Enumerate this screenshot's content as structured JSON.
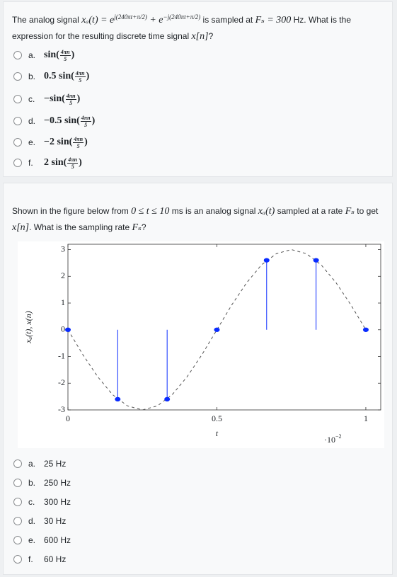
{
  "question1": {
    "segments": [
      "The analog signal ",
      "xₐ(t) = e",
      "j(240πt+π/2)",
      " + e",
      "−j(240πt+π/2)",
      " is sampled at ",
      "Fₛ = 300",
      " Hz. What is the expression for the resulting discrete time signal ",
      "x[n]",
      "?"
    ],
    "options": [
      {
        "letter": "a.",
        "prefix": "sin(",
        "num": "4πn",
        "den": "5",
        "suffix": ")"
      },
      {
        "letter": "b.",
        "prefix": "0.5 sin(",
        "num": "4πn",
        "den": "5",
        "suffix": ")"
      },
      {
        "letter": "c.",
        "prefix": "−sin(",
        "num": "4πn",
        "den": "5",
        "suffix": ")"
      },
      {
        "letter": "d.",
        "prefix": "−0.5 sin(",
        "num": "4πn",
        "den": "5",
        "suffix": ")"
      },
      {
        "letter": "e.",
        "prefix": "−2 sin(",
        "num": "4πn",
        "den": "5",
        "suffix": ")"
      },
      {
        "letter": "f.",
        "prefix": "2 sin(",
        "num": "4πn",
        "den": "5",
        "suffix": ")"
      }
    ]
  },
  "question2": {
    "segments": [
      "Shown in the figure below from ",
      "0 ≤ t ≤ 10",
      " ms is an analog signal ",
      "xₐ(t)",
      " sampled at a rate ",
      "Fₛ",
      " to get ",
      "x[n]",
      ". What is the sampling rate ",
      "Fₛ",
      "?"
    ],
    "options": [
      {
        "letter": "a.",
        "text": "25 Hz"
      },
      {
        "letter": "b.",
        "text": "250 Hz"
      },
      {
        "letter": "c.",
        "text": "300 Hz"
      },
      {
        "letter": "d.",
        "text": "30 Hz"
      },
      {
        "letter": "e.",
        "text": "600 Hz"
      },
      {
        "letter": "f.",
        "text": "60 Hz"
      }
    ]
  },
  "chart_data": {
    "type": "stem",
    "xlabel": "t",
    "ylabel": "xₐ(t), x(n)",
    "x_multiplier": "·10",
    "x_multiplier_exp": "−2",
    "xlim": [
      0,
      1.05
    ],
    "ylim": [
      -3,
      3.2
    ],
    "xticks": [
      0,
      0.5,
      1
    ],
    "yticks": [
      -3,
      -2,
      -1,
      0,
      1,
      2,
      3
    ],
    "series": [
      {
        "style": "dashed",
        "color": "#555555",
        "x": [
          0,
          0.05,
          0.1,
          0.15,
          0.2,
          0.25,
          0.3,
          0.35,
          0.4,
          0.45,
          0.5,
          0.55,
          0.6,
          0.65,
          0.7,
          0.75,
          0.8,
          0.85,
          0.9,
          0.95,
          1
        ],
        "values": [
          0,
          -0.93,
          -1.76,
          -2.43,
          -2.85,
          -3,
          -2.85,
          -2.43,
          -1.76,
          -0.93,
          0,
          0.93,
          1.76,
          2.43,
          2.85,
          3,
          2.85,
          2.43,
          1.76,
          0.93,
          0
        ]
      },
      {
        "style": "stem",
        "color": "#0a2cff",
        "x": [
          0,
          0.167,
          0.333,
          0.5,
          0.667,
          0.833,
          1
        ],
        "values": [
          0,
          -2.6,
          -2.6,
          0,
          2.6,
          2.6,
          0
        ]
      }
    ]
  }
}
